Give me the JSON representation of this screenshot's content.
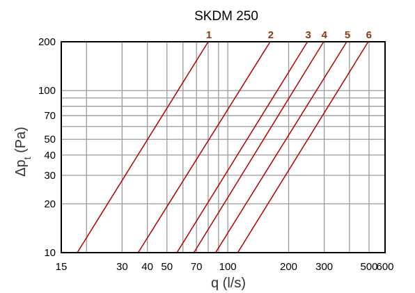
{
  "chart_data": {
    "type": "line",
    "title": "SKDM 250",
    "xlabel": "q (l/s)",
    "ylabel_main": "Δp",
    "ylabel_sub": "t",
    "ylabel_tail": " (Pa)",
    "x_scale": "log",
    "y_scale": "log",
    "xlim": [
      15,
      600
    ],
    "ylim": [
      10,
      200
    ],
    "grid": true,
    "x_ticks": [
      15,
      30,
      40,
      50,
      70,
      100,
      200,
      300,
      500,
      600
    ],
    "x_tick_labels": [
      "15",
      "30",
      "40",
      "50",
      "70",
      "100",
      "200",
      "300",
      "500",
      "600"
    ],
    "x_grid": [
      20,
      30,
      40,
      50,
      60,
      70,
      80,
      90,
      100,
      200,
      300,
      400,
      500
    ],
    "y_ticks": [
      10,
      20,
      30,
      40,
      50,
      70,
      100,
      200
    ],
    "y_tick_labels": [
      "10",
      "20",
      "30",
      "40",
      "50",
      "70",
      "100",
      "200"
    ],
    "y_grid": [
      20,
      30,
      40,
      50,
      60,
      70,
      80,
      90,
      100
    ],
    "line_color": "#b30000",
    "label_color": "#8b3a10",
    "series": [
      {
        "name": "1",
        "x": [
          18,
          80
        ],
        "y": [
          10,
          200
        ]
      },
      {
        "name": "2",
        "x": [
          36,
          162
        ],
        "y": [
          10,
          200
        ]
      },
      {
        "name": "3",
        "x": [
          56,
          248
        ],
        "y": [
          10,
          200
        ]
      },
      {
        "name": "4",
        "x": [
          68,
          298
        ],
        "y": [
          10,
          200
        ]
      },
      {
        "name": "5",
        "x": [
          87,
          388
        ],
        "y": [
          10,
          200
        ]
      },
      {
        "name": "6",
        "x": [
          112,
          495
        ],
        "y": [
          10,
          200
        ]
      }
    ]
  }
}
